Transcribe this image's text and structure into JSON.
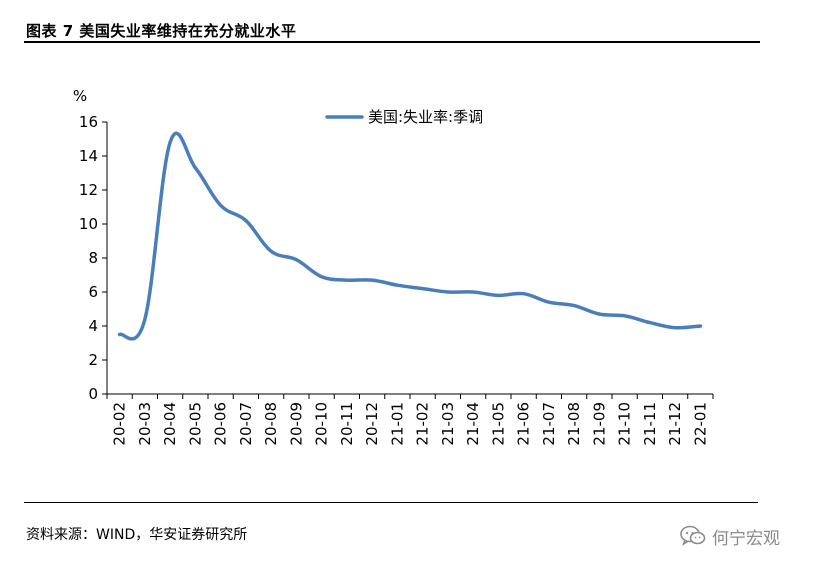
{
  "header": {
    "figure_title": "图表 7  美国失业率维持在充分就业水平"
  },
  "footer": {
    "source": "资料来源：WIND，华安证券研究所",
    "watermark": "何宁宏观",
    "watermark_icon": "wechat-icon"
  },
  "chart_data": {
    "type": "line",
    "ylabel": "%",
    "ylim": [
      0,
      16
    ],
    "yticks": [
      0,
      2,
      4,
      6,
      8,
      10,
      12,
      14,
      16
    ],
    "grid": false,
    "legend_position": "top-center",
    "categories": [
      "20-02",
      "20-03",
      "20-04",
      "20-05",
      "20-06",
      "20-07",
      "20-08",
      "20-09",
      "20-10",
      "20-11",
      "20-12",
      "21-01",
      "21-02",
      "21-03",
      "21-04",
      "21-05",
      "21-06",
      "21-07",
      "21-08",
      "21-09",
      "21-10",
      "21-11",
      "21-12",
      "22-01"
    ],
    "series": [
      {
        "name": "美国:失业率:季调",
        "color": "#4a7ebb",
        "values": [
          3.5,
          4.4,
          14.8,
          13.3,
          11.1,
          10.2,
          8.4,
          7.9,
          6.9,
          6.7,
          6.7,
          6.4,
          6.2,
          6.0,
          6.0,
          5.8,
          5.9,
          5.4,
          5.2,
          4.7,
          4.6,
          4.2,
          3.9,
          4.0
        ]
      }
    ]
  }
}
